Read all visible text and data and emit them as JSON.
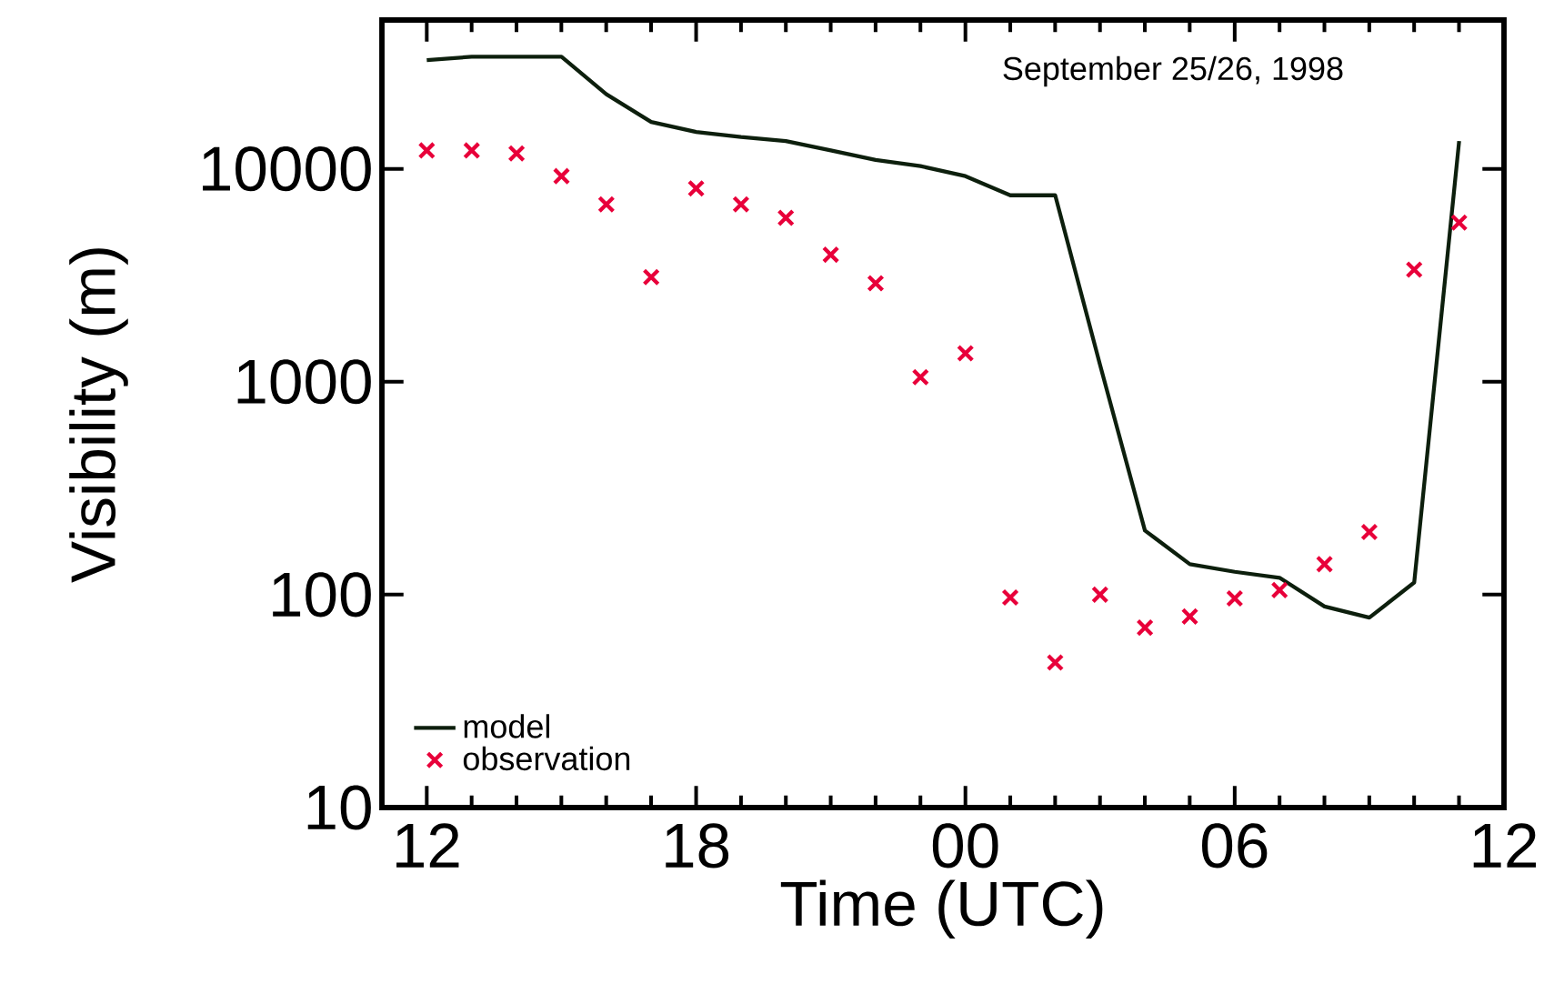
{
  "chart_data": {
    "type": "line",
    "xlabel": "Time (UTC)",
    "ylabel": "Visibility (m)",
    "annotations": [
      "September 25/26, 1998"
    ],
    "xlim": [
      "1998-09-25T11:00",
      "1998-09-26T12:00"
    ],
    "xticks": [
      {
        "value": "1998-09-25T12:00",
        "label": "12"
      },
      {
        "value": "1998-09-25T18:00",
        "label": "18"
      },
      {
        "value": "1998-09-26T00:00",
        "label": "00"
      },
      {
        "value": "1998-09-26T06:00",
        "label": "06"
      },
      {
        "value": "1998-09-26T12:00",
        "label": "12"
      }
    ],
    "ylim": [
      10,
      50000
    ],
    "yticks": [
      10,
      100,
      1000,
      10000
    ],
    "log": "y",
    "legend": "bottom left",
    "series": [
      {
        "name": "model",
        "marker": "none",
        "color": "#0d1f0d",
        "x": [
          "1998-09-25T12:00",
          "1998-09-25T13:00",
          "1998-09-25T14:00",
          "1998-09-25T15:00",
          "1998-09-25T16:00",
          "1998-09-25T17:00",
          "1998-09-25T18:00",
          "1998-09-25T19:00",
          "1998-09-25T20:00",
          "1998-09-25T21:00",
          "1998-09-25T22:00",
          "1998-09-25T23:00",
          "1998-09-26T00:00",
          "1998-09-26T01:00",
          "1998-09-26T02:00",
          "1998-09-26T03:00",
          "1998-09-26T04:00",
          "1998-09-26T05:00",
          "1998-09-26T06:00",
          "1998-09-26T07:00",
          "1998-09-26T08:00",
          "1998-09-26T09:00",
          "1998-09-26T10:00",
          "1998-09-26T11:00"
        ],
        "values": [
          32400,
          33600,
          33600,
          33600,
          22400,
          16600,
          14900,
          14100,
          13500,
          12200,
          11000,
          10300,
          9240,
          7510,
          7510,
          1200,
          200,
          139,
          128,
          120,
          88,
          78,
          114,
          13500
        ]
      },
      {
        "name": "observation",
        "type": "scatter",
        "marker": "cross",
        "color": "#e8003a",
        "x": [
          "1998-09-25T12:00",
          "1998-09-25T13:00",
          "1998-09-25T14:00",
          "1998-09-25T15:00",
          "1998-09-25T16:00",
          "1998-09-25T17:00",
          "1998-09-25T18:00",
          "1998-09-25T19:00",
          "1998-09-25T20:00",
          "1998-09-25T21:00",
          "1998-09-25T22:00",
          "1998-09-25T23:00",
          "1998-09-26T00:00",
          "1998-09-26T01:00",
          "1998-09-26T02:00",
          "1998-09-26T03:00",
          "1998-09-26T04:00",
          "1998-09-26T05:00",
          "1998-09-26T06:00",
          "1998-09-26T07:00",
          "1998-09-26T08:00",
          "1998-09-26T09:00",
          "1998-09-26T10:00",
          "1998-09-26T11:00"
        ],
        "values": [
          12200,
          12200,
          11800,
          9240,
          6810,
          3100,
          8090,
          6810,
          5890,
          3950,
          2900,
          1050,
          1360,
          97,
          48,
          100,
          70,
          79,
          96,
          105,
          139,
          197,
          3360,
          5590
        ]
      }
    ]
  }
}
